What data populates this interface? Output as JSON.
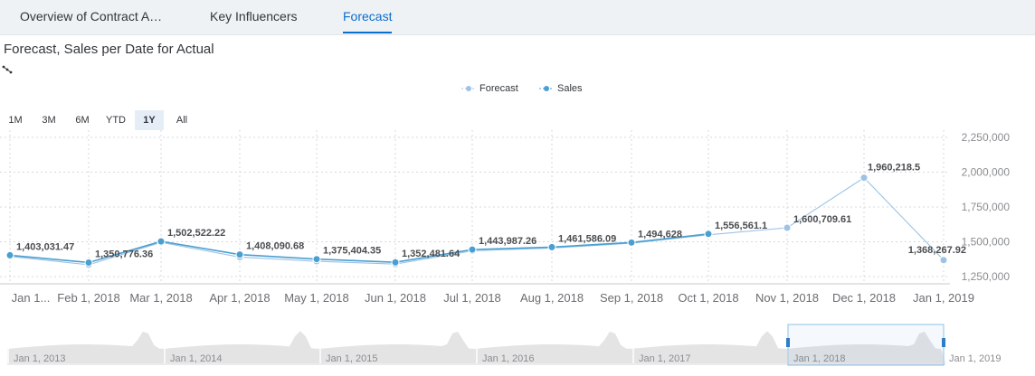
{
  "tabs": [
    {
      "label": "Overview of Contract A…"
    },
    {
      "label": "Key Influencers"
    },
    {
      "label": "Forecast"
    }
  ],
  "title": "Forecast, Sales per Date for Actual",
  "legend": [
    {
      "name": "Forecast",
      "color": "#9cc3e5"
    },
    {
      "name": "Sales",
      "color": "#4a9fd1"
    }
  ],
  "range_buttons": [
    "1M",
    "3M",
    "6M",
    "YTD",
    "1Y",
    "All"
  ],
  "active_range": "1Y",
  "navigator": {
    "labels": [
      "Jan 1, 2013",
      "Jan 1, 2014",
      "Jan 1, 2015",
      "Jan 1, 2016",
      "Jan 1, 2017",
      "Jan 1, 2018",
      "Jan 1, 2019"
    ]
  },
  "chart_data": {
    "type": "line",
    "title": "Forecast, Sales per Date for Actual",
    "x": [
      "Jan 1...",
      "Feb 1, 2018",
      "Mar 1, 2018",
      "Apr 1, 2018",
      "May 1, 2018",
      "Jun 1, 2018",
      "Jul 1, 2018",
      "Aug 1, 2018",
      "Sep 1, 2018",
      "Oct 1, 2018",
      "Nov 1, 2018",
      "Dec 1, 2018",
      "Jan 1, 2019"
    ],
    "series": [
      {
        "name": "Forecast",
        "color": "#9cc3e5",
        "values": [
          1395000,
          1335000,
          1495000,
          1390000,
          1360000,
          1340000,
          1435000,
          1455000,
          1490000,
          1550000,
          1600709.61,
          1960218.5,
          1368267.92
        ],
        "labels": [
          null,
          null,
          null,
          null,
          null,
          null,
          null,
          null,
          null,
          null,
          "1,600,709.61",
          "1,960,218.5",
          "1,368,267.92"
        ]
      },
      {
        "name": "Sales",
        "color": "#4a9fd1",
        "values": [
          1403031.47,
          1350776.36,
          1502522.22,
          1408090.68,
          1375404.35,
          1352481.64,
          1443987.26,
          1461586.09,
          1494628,
          1556561.1,
          null,
          null,
          null
        ],
        "labels": [
          "1,403,031.47",
          "1,350,776.36",
          "1,502,522.22",
          "1,408,090.68",
          "1,375,404.35",
          "1,352,481.64",
          "1,443,987.26",
          "1,461,586.09",
          "1,494,628",
          "1,556,561.1",
          null,
          null,
          null
        ]
      }
    ],
    "ylim": [
      1250000,
      2250000
    ],
    "yticks": [
      "1,250,000",
      "1,500,000",
      "1,750,000",
      "2,000,000",
      "2,250,000"
    ],
    "ytick_values": [
      1250000,
      1500000,
      1750000,
      2000000,
      2250000
    ],
    "grid": true,
    "legend_position": "top-center"
  }
}
